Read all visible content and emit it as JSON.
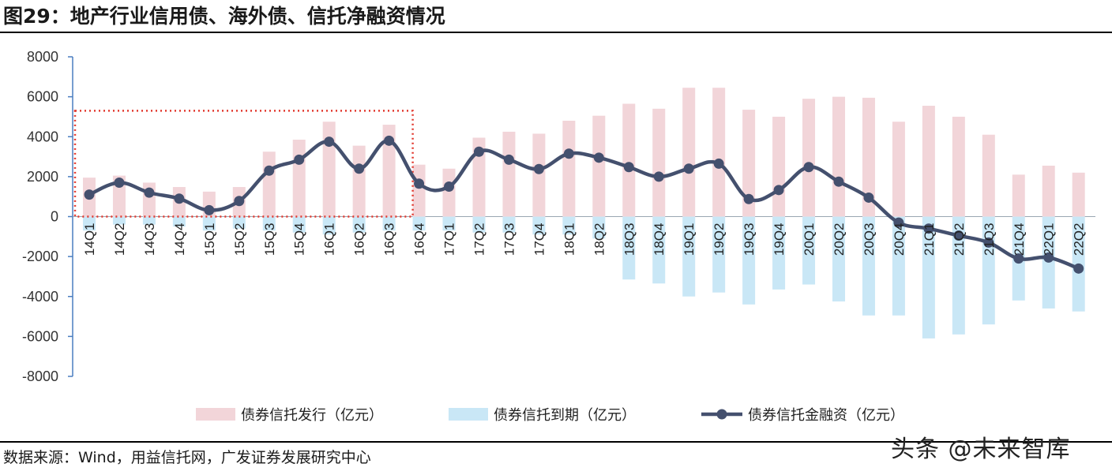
{
  "header": {
    "title": "图29：地产行业信用债、海外债、信托净融资情况"
  },
  "footer": {
    "source": "数据来源：Wind，用益信托网，广发证券发展研究中心"
  },
  "watermark": {
    "text": "头条 @未来智库"
  },
  "colors": {
    "issue": "#f2d5d9",
    "maturity": "#c9e7f6",
    "net": "#44506e",
    "box": "#e2392f"
  },
  "chart_data": {
    "type": "bar",
    "categories": [
      "14Q1",
      "14Q2",
      "14Q3",
      "14Q4",
      "15Q1",
      "15Q2",
      "15Q3",
      "15Q4",
      "16Q1",
      "16Q2",
      "16Q3",
      "16Q4",
      "17Q1",
      "17Q2",
      "17Q3",
      "17Q4",
      "18Q1",
      "18Q2",
      "18Q3",
      "18Q4",
      "19Q1",
      "19Q2",
      "19Q3",
      "19Q4",
      "20Q1",
      "20Q2",
      "20Q3",
      "20Q4",
      "21Q1",
      "21Q2",
      "21Q3",
      "21Q4",
      "22Q1",
      "22Q2"
    ],
    "ylim": [
      -8000,
      8000
    ],
    "yticks": [
      8000,
      6000,
      4000,
      2000,
      0,
      -2000,
      -4000,
      -6000,
      -8000
    ],
    "series": [
      {
        "name": "债券信托发行（亿元）",
        "type": "bar",
        "values": [
          1950,
          2050,
          1700,
          1480,
          1250,
          1480,
          3250,
          3850,
          4750,
          3550,
          4600,
          2600,
          2400,
          3950,
          4250,
          4150,
          4800,
          5050,
          5650,
          5400,
          6450,
          6450,
          5350,
          5000,
          5900,
          6000,
          5950,
          4750,
          5550,
          5000,
          4100,
          2100,
          2550,
          2200
        ]
      },
      {
        "name": "债券信托到期（亿元）",
        "type": "bar",
        "values": [
          -700,
          -400,
          -400,
          -500,
          -700,
          -600,
          -700,
          -800,
          -900,
          -800,
          -700,
          -700,
          -700,
          -800,
          -800,
          -900,
          -900,
          -1100,
          -3150,
          -3350,
          -4000,
          -3800,
          -4400,
          -3650,
          -3400,
          -4250,
          -4950,
          -4950,
          -6100,
          -5900,
          -5400,
          -4200,
          -4600,
          -4750
        ]
      },
      {
        "name": "债券信托金融资（亿元）",
        "type": "line",
        "values": [
          1100,
          1700,
          1200,
          900,
          320,
          780,
          2300,
          2850,
          3750,
          2400,
          3800,
          1650,
          1500,
          3250,
          2850,
          2380,
          3150,
          2950,
          2480,
          2000,
          2400,
          2650,
          880,
          1330,
          2480,
          1750,
          950,
          -300,
          -600,
          -950,
          -1300,
          -2100,
          -2050,
          -2600
        ]
      }
    ],
    "annotation": {
      "type": "dotted-box",
      "from": "14Q1",
      "to": "16Q3"
    },
    "legend": {
      "position": "bottom"
    }
  }
}
